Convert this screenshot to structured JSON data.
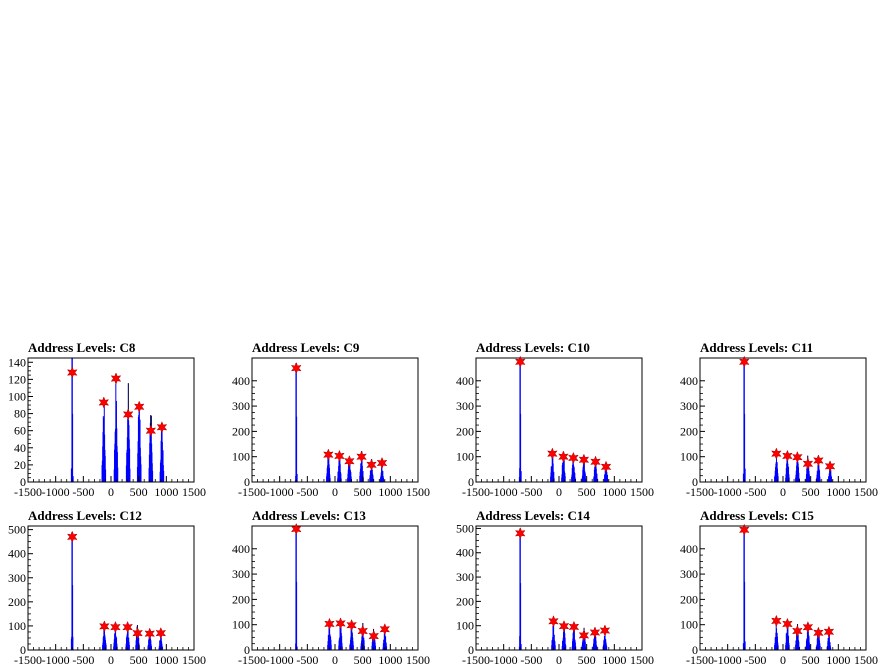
{
  "colors": {
    "histogram": "#0000ff",
    "marker": "#ff0000",
    "axis": "#000000"
  },
  "chart_data": [
    {
      "type": "bar",
      "title": "Address Levels: C8",
      "xlim": [
        -1500,
        1500
      ],
      "ylim": [
        0,
        145
      ],
      "xticks": [
        -1500,
        -1000,
        -500,
        0,
        500,
        1000,
        1500
      ],
      "yticks": [
        0,
        20,
        40,
        60,
        80,
        100,
        120,
        140
      ],
      "xtick_labels": [
        "-1500",
        "-1000",
        "-500",
        "0",
        "500",
        "1000",
        "1500"
      ],
      "ytick_labels": [
        "0",
        "20",
        "40",
        "60",
        "80",
        "100",
        "120",
        "140"
      ],
      "peaks": [
        {
          "x": -700,
          "y": 128,
          "spike": 145
        },
        {
          "x": -130,
          "y": 93,
          "spike": 117
        },
        {
          "x": 90,
          "y": 121,
          "spike": 131
        },
        {
          "x": 310,
          "y": 79,
          "spike": 125
        },
        {
          "x": 510,
          "y": 88,
          "spike": 133
        },
        {
          "x": 720,
          "y": 60,
          "spike": 101
        },
        {
          "x": 920,
          "y": 64,
          "spike": 80
        }
      ]
    },
    {
      "type": "bar",
      "title": "Address Levels: C9",
      "xlim": [
        -1500,
        1500
      ],
      "ylim": [
        0,
        490
      ],
      "xticks": [
        -1500,
        -1000,
        -500,
        0,
        500,
        1000,
        1500
      ],
      "yticks": [
        0,
        100,
        200,
        300,
        400
      ],
      "xtick_labels": [
        "-1500",
        "-1000",
        "-500",
        "0",
        "500",
        "1000",
        "1500"
      ],
      "ytick_labels": [
        "0",
        "100",
        "200",
        "300",
        "400"
      ],
      "peaks": [
        {
          "x": -700,
          "y": 450,
          "spike": 470
        },
        {
          "x": -120,
          "y": 108,
          "spike": 135
        },
        {
          "x": 80,
          "y": 103,
          "spike": 130
        },
        {
          "x": 260,
          "y": 82,
          "spike": 128
        },
        {
          "x": 480,
          "y": 100,
          "spike": 135
        },
        {
          "x": 660,
          "y": 68,
          "spike": 102
        },
        {
          "x": 850,
          "y": 75,
          "spike": 82
        }
      ]
    },
    {
      "type": "bar",
      "title": "Address Levels: C10",
      "xlim": [
        -1500,
        1500
      ],
      "ylim": [
        0,
        490
      ],
      "xticks": [
        -1500,
        -1000,
        -500,
        0,
        500,
        1000,
        1500
      ],
      "yticks": [
        0,
        100,
        200,
        300,
        400
      ],
      "xtick_labels": [
        "-1500",
        "-1000",
        "-500",
        "0",
        "500",
        "1000",
        "1500"
      ],
      "ytick_labels": [
        "0",
        "100",
        "200",
        "300",
        "400"
      ],
      "peaks": [
        {
          "x": -700,
          "y": 475,
          "spike": 490
        },
        {
          "x": -120,
          "y": 112,
          "spike": 130
        },
        {
          "x": 80,
          "y": 100,
          "spike": 145
        },
        {
          "x": 260,
          "y": 95,
          "spike": 120
        },
        {
          "x": 450,
          "y": 88,
          "spike": 115
        },
        {
          "x": 660,
          "y": 80,
          "spike": 110
        },
        {
          "x": 850,
          "y": 60,
          "spike": 95
        }
      ]
    },
    {
      "type": "bar",
      "title": "Address Levels: C11",
      "xlim": [
        -1500,
        1500
      ],
      "ylim": [
        0,
        490
      ],
      "xticks": [
        -1500,
        -1000,
        -500,
        0,
        500,
        1000,
        1500
      ],
      "yticks": [
        0,
        100,
        200,
        300,
        400
      ],
      "xtick_labels": [
        "-1500",
        "-1000",
        "-500",
        "0",
        "500",
        "1000",
        "1500"
      ],
      "ytick_labels": [
        "0",
        "100",
        "200",
        "300",
        "400"
      ],
      "peaks": [
        {
          "x": -700,
          "y": 475,
          "spike": 490
        },
        {
          "x": -120,
          "y": 112,
          "spike": 130
        },
        {
          "x": 80,
          "y": 103,
          "spike": 130
        },
        {
          "x": 260,
          "y": 98,
          "spike": 125
        },
        {
          "x": 450,
          "y": 72,
          "spike": 120
        },
        {
          "x": 640,
          "y": 85,
          "spike": 100
        },
        {
          "x": 850,
          "y": 62,
          "spike": 82
        }
      ]
    },
    {
      "type": "bar",
      "title": "Address Levels: C12",
      "xlim": [
        -1500,
        1500
      ],
      "ylim": [
        0,
        515
      ],
      "xticks": [
        -1500,
        -1000,
        -500,
        0,
        500,
        1000,
        1500
      ],
      "yticks": [
        0,
        100,
        200,
        300,
        400,
        500
      ],
      "xtick_labels": [
        "-1500",
        "-1000",
        "-500",
        "0",
        "500",
        "1000",
        "1500"
      ],
      "ytick_labels": [
        "0",
        "100",
        "200",
        "300",
        "400",
        "500"
      ],
      "peaks": [
        {
          "x": -700,
          "y": 470,
          "spike": 490
        },
        {
          "x": -120,
          "y": 98,
          "spike": 132
        },
        {
          "x": 80,
          "y": 95,
          "spike": 115
        },
        {
          "x": 300,
          "y": 95,
          "spike": 120
        },
        {
          "x": 480,
          "y": 70,
          "spike": 130
        },
        {
          "x": 700,
          "y": 68,
          "spike": 92
        },
        {
          "x": 900,
          "y": 70,
          "spike": 80
        }
      ]
    },
    {
      "type": "bar",
      "title": "Address Levels: C13",
      "xlim": [
        -1500,
        1500
      ],
      "ylim": [
        0,
        490
      ],
      "xticks": [
        -1500,
        -1000,
        -500,
        0,
        500,
        1000,
        1500
      ],
      "yticks": [
        0,
        100,
        200,
        300,
        400
      ],
      "xtick_labels": [
        "-1500",
        "-1000",
        "-500",
        "0",
        "500",
        "1000",
        "1500"
      ],
      "ytick_labels": [
        "0",
        "100",
        "200",
        "300",
        "400"
      ],
      "peaks": [
        {
          "x": -700,
          "y": 478,
          "spike": 490
        },
        {
          "x": -100,
          "y": 103,
          "spike": 130
        },
        {
          "x": 100,
          "y": 105,
          "spike": 130
        },
        {
          "x": 300,
          "y": 98,
          "spike": 125
        },
        {
          "x": 500,
          "y": 75,
          "spike": 120
        },
        {
          "x": 700,
          "y": 55,
          "spike": 100
        },
        {
          "x": 900,
          "y": 82,
          "spike": 90
        }
      ]
    },
    {
      "type": "bar",
      "title": "Address Levels: C14",
      "xlim": [
        -1500,
        1500
      ],
      "ylim": [
        0,
        510
      ],
      "xticks": [
        -1500,
        -1000,
        -500,
        0,
        500,
        1000,
        1500
      ],
      "yticks": [
        0,
        100,
        200,
        300,
        400,
        500
      ],
      "xtick_labels": [
        "-1500",
        "-1000",
        "-500",
        "0",
        "500",
        "1000",
        "1500"
      ],
      "ytick_labels": [
        "0",
        "100",
        "200",
        "300",
        "400",
        "500"
      ],
      "peaks": [
        {
          "x": -700,
          "y": 480,
          "spike": 500
        },
        {
          "x": -100,
          "y": 118,
          "spike": 130
        },
        {
          "x": 90,
          "y": 98,
          "spike": 120
        },
        {
          "x": 270,
          "y": 95,
          "spike": 115
        },
        {
          "x": 450,
          "y": 60,
          "spike": 115
        },
        {
          "x": 650,
          "y": 72,
          "spike": 100
        },
        {
          "x": 830,
          "y": 80,
          "spike": 88
        }
      ]
    },
    {
      "type": "bar",
      "title": "Address Levels: C15",
      "xlim": [
        -1500,
        1500
      ],
      "ylim": [
        0,
        490
      ],
      "xticks": [
        -1500,
        -1000,
        -500,
        0,
        500,
        1000,
        1500
      ],
      "yticks": [
        0,
        100,
        200,
        300,
        400
      ],
      "xtick_labels": [
        "-1500",
        "-1000",
        "-500",
        "0",
        "500",
        "1000",
        "1500"
      ],
      "ytick_labels": [
        "0",
        "100",
        "200",
        "300",
        "400"
      ],
      "peaks": [
        {
          "x": -700,
          "y": 475,
          "spike": 490
        },
        {
          "x": -120,
          "y": 115,
          "spike": 130
        },
        {
          "x": 80,
          "y": 103,
          "spike": 140
        },
        {
          "x": 260,
          "y": 75,
          "spike": 125
        },
        {
          "x": 450,
          "y": 90,
          "spike": 120
        },
        {
          "x": 640,
          "y": 68,
          "spike": 105
        },
        {
          "x": 830,
          "y": 72,
          "spike": 80
        }
      ]
    }
  ]
}
